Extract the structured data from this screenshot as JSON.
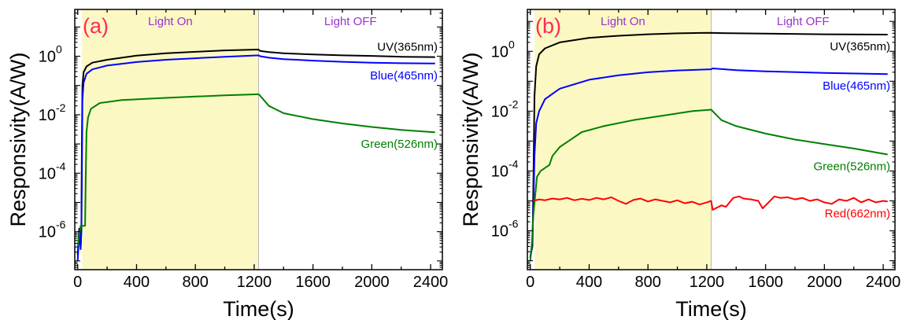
{
  "figure": {
    "regions": {
      "on_label": "Light On",
      "off_label": "Light OFF",
      "on_range": [
        30,
        1230
      ],
      "on_color": "#fbf8c4",
      "label_color": "#9933cc",
      "divider_color": "#b8b8b8"
    },
    "panel_label_color": "#ff2a5a"
  },
  "chart_data": [
    {
      "type": "line",
      "panel_label": "(a)",
      "xlabel": "Time(s)",
      "ylabel": "Responsivity(A/W)",
      "xlim": [
        -20,
        2480
      ],
      "ylim_exp": [
        -7.3,
        1.6
      ],
      "yscale": "log",
      "xticks": [
        0,
        400,
        800,
        1200,
        1600,
        2000,
        2400
      ],
      "ytick_exponents": [
        -6,
        -4,
        -2,
        0
      ],
      "grid": false,
      "series": [
        {
          "name": "UV(365nm)",
          "color": "#000000",
          "label_pos": "end-above",
          "points": [
            [
              0,
              -6.8
            ],
            [
              10,
              -5.9
            ],
            [
              20,
              -6.5
            ],
            [
              25,
              -5.8
            ],
            [
              28,
              -3.0
            ],
            [
              32,
              -1.0
            ],
            [
              40,
              -0.55
            ],
            [
              60,
              -0.35
            ],
            [
              100,
              -0.22
            ],
            [
              200,
              -0.12
            ],
            [
              400,
              0.02
            ],
            [
              600,
              0.1
            ],
            [
              800,
              0.15
            ],
            [
              1000,
              0.2
            ],
            [
              1230,
              0.23
            ],
            [
              1240,
              0.18
            ],
            [
              1300,
              0.14
            ],
            [
              1400,
              0.1
            ],
            [
              1600,
              0.06
            ],
            [
              1800,
              0.03
            ],
            [
              2000,
              0.01
            ],
            [
              2200,
              -0.02
            ],
            [
              2430,
              -0.03
            ]
          ]
        },
        {
          "name": "Blue(465nm)",
          "color": "#0000ff",
          "label_pos": "end-below",
          "points": [
            [
              0,
              -7.0
            ],
            [
              10,
              -6.0
            ],
            [
              20,
              -6.6
            ],
            [
              25,
              -6.0
            ],
            [
              28,
              -4.0
            ],
            [
              32,
              -1.5
            ],
            [
              40,
              -0.9
            ],
            [
              60,
              -0.6
            ],
            [
              100,
              -0.45
            ],
            [
              200,
              -0.32
            ],
            [
              400,
              -0.2
            ],
            [
              600,
              -0.12
            ],
            [
              800,
              -0.07
            ],
            [
              1000,
              -0.02
            ],
            [
              1230,
              0.03
            ],
            [
              1240,
              0.0
            ],
            [
              1300,
              -0.05
            ],
            [
              1400,
              -0.1
            ],
            [
              1600,
              -0.15
            ],
            [
              1800,
              -0.19
            ],
            [
              2000,
              -0.22
            ],
            [
              2200,
              -0.24
            ],
            [
              2430,
              -0.25
            ]
          ]
        },
        {
          "name": "Green(526nm)",
          "color": "#008000",
          "label_pos": "end-below",
          "points": [
            [
              0,
              -6.5
            ],
            [
              20,
              -5.8
            ],
            [
              30,
              -5.8
            ],
            [
              50,
              -5.8
            ],
            [
              55,
              -4.0
            ],
            [
              60,
              -2.6
            ],
            [
              70,
              -2.1
            ],
            [
              90,
              -1.8
            ],
            [
              150,
              -1.6
            ],
            [
              300,
              -1.5
            ],
            [
              500,
              -1.45
            ],
            [
              800,
              -1.38
            ],
            [
              1000,
              -1.34
            ],
            [
              1230,
              -1.3
            ],
            [
              1240,
              -1.35
            ],
            [
              1300,
              -1.7
            ],
            [
              1400,
              -1.95
            ],
            [
              1600,
              -2.15
            ],
            [
              1800,
              -2.3
            ],
            [
              2000,
              -2.42
            ],
            [
              2200,
              -2.52
            ],
            [
              2430,
              -2.6
            ]
          ]
        }
      ]
    },
    {
      "type": "line",
      "panel_label": "(b)",
      "xlabel": "Time(s)",
      "ylabel": "Responsivity(A/W)",
      "xlim": [
        -20,
        2480
      ],
      "ylim_exp": [
        -7.3,
        1.4
      ],
      "yscale": "log",
      "xticks": [
        0,
        400,
        800,
        1200,
        1600,
        2000,
        2400
      ],
      "ytick_exponents": [
        -6,
        -4,
        -2,
        0
      ],
      "grid": false,
      "series": [
        {
          "name": "UV(365nm)",
          "color": "#000000",
          "label_pos": "end-below",
          "points": [
            [
              0,
              -6.9
            ],
            [
              15,
              -6.5
            ],
            [
              22,
              -4.0
            ],
            [
              28,
              -1.5
            ],
            [
              40,
              -0.5
            ],
            [
              60,
              -0.1
            ],
            [
              100,
              0.1
            ],
            [
              200,
              0.3
            ],
            [
              400,
              0.45
            ],
            [
              600,
              0.52
            ],
            [
              800,
              0.57
            ],
            [
              1000,
              0.6
            ],
            [
              1230,
              0.62
            ],
            [
              1300,
              0.61
            ],
            [
              1600,
              0.59
            ],
            [
              2000,
              0.57
            ],
            [
              2430,
              0.56
            ]
          ]
        },
        {
          "name": "Blue(465nm)",
          "color": "#0000ff",
          "label_pos": "end-below",
          "points": [
            [
              0,
              -6.9
            ],
            [
              15,
              -6.3
            ],
            [
              22,
              -5.0
            ],
            [
              28,
              -3.5
            ],
            [
              40,
              -2.4
            ],
            [
              60,
              -2.0
            ],
            [
              100,
              -1.6
            ],
            [
              200,
              -1.25
            ],
            [
              400,
              -0.95
            ],
            [
              600,
              -0.8
            ],
            [
              800,
              -0.7
            ],
            [
              1000,
              -0.64
            ],
            [
              1230,
              -0.6
            ],
            [
              1240,
              -0.57
            ],
            [
              1400,
              -0.63
            ],
            [
              1600,
              -0.67
            ],
            [
              2000,
              -0.72
            ],
            [
              2430,
              -0.76
            ]
          ]
        },
        {
          "name": "Green(526nm)",
          "color": "#008000",
          "label_pos": "end-below",
          "points": [
            [
              0,
              -7.0
            ],
            [
              10,
              -6.5
            ],
            [
              20,
              -5.5
            ],
            [
              30,
              -5.0
            ],
            [
              45,
              -4.2
            ],
            [
              70,
              -4.0
            ],
            [
              100,
              -3.9
            ],
            [
              130,
              -3.8
            ],
            [
              150,
              -3.5
            ],
            [
              200,
              -3.2
            ],
            [
              260,
              -3.0
            ],
            [
              350,
              -2.7
            ],
            [
              500,
              -2.5
            ],
            [
              700,
              -2.3
            ],
            [
              900,
              -2.15
            ],
            [
              1100,
              -2.0
            ],
            [
              1230,
              -1.95
            ],
            [
              1250,
              -2.05
            ],
            [
              1300,
              -2.3
            ],
            [
              1400,
              -2.5
            ],
            [
              1600,
              -2.75
            ],
            [
              1800,
              -2.95
            ],
            [
              2000,
              -3.1
            ],
            [
              2200,
              -3.25
            ],
            [
              2430,
              -3.45
            ]
          ]
        },
        {
          "name": "Red(662nm)",
          "color": "#ff0000",
          "label_pos": "end-below",
          "points": [
            [
              20,
              -5.0
            ],
            [
              60,
              -4.95
            ],
            [
              100,
              -4.98
            ],
            [
              150,
              -4.92
            ],
            [
              200,
              -4.95
            ],
            [
              250,
              -4.9
            ],
            [
              300,
              -4.98
            ],
            [
              350,
              -4.93
            ],
            [
              400,
              -4.97
            ],
            [
              450,
              -4.9
            ],
            [
              500,
              -4.95
            ],
            [
              550,
              -4.88
            ],
            [
              600,
              -5.0
            ],
            [
              650,
              -5.1
            ],
            [
              700,
              -4.97
            ],
            [
              750,
              -4.92
            ],
            [
              800,
              -5.02
            ],
            [
              850,
              -4.95
            ],
            [
              900,
              -5.0
            ],
            [
              950,
              -5.05
            ],
            [
              1000,
              -4.98
            ],
            [
              1050,
              -5.08
            ],
            [
              1100,
              -5.03
            ],
            [
              1150,
              -5.12
            ],
            [
              1200,
              -5.05
            ],
            [
              1230,
              -5.0
            ],
            [
              1240,
              -5.3
            ],
            [
              1260,
              -5.25
            ],
            [
              1300,
              -5.15
            ],
            [
              1330,
              -5.2
            ],
            [
              1380,
              -4.9
            ],
            [
              1420,
              -4.85
            ],
            [
              1450,
              -4.92
            ],
            [
              1500,
              -4.95
            ],
            [
              1550,
              -5.0
            ],
            [
              1580,
              -5.25
            ],
            [
              1620,
              -5.05
            ],
            [
              1660,
              -4.85
            ],
            [
              1700,
              -4.9
            ],
            [
              1750,
              -4.88
            ],
            [
              1800,
              -4.95
            ],
            [
              1850,
              -4.9
            ],
            [
              1900,
              -5.0
            ],
            [
              1950,
              -4.95
            ],
            [
              2000,
              -5.05
            ],
            [
              2050,
              -5.1
            ],
            [
              2100,
              -4.95
            ],
            [
              2150,
              -5.0
            ],
            [
              2200,
              -4.9
            ],
            [
              2250,
              -5.05
            ],
            [
              2300,
              -4.95
            ],
            [
              2350,
              -5.05
            ],
            [
              2400,
              -5.0
            ],
            [
              2430,
              -5.02
            ]
          ]
        }
      ]
    }
  ]
}
